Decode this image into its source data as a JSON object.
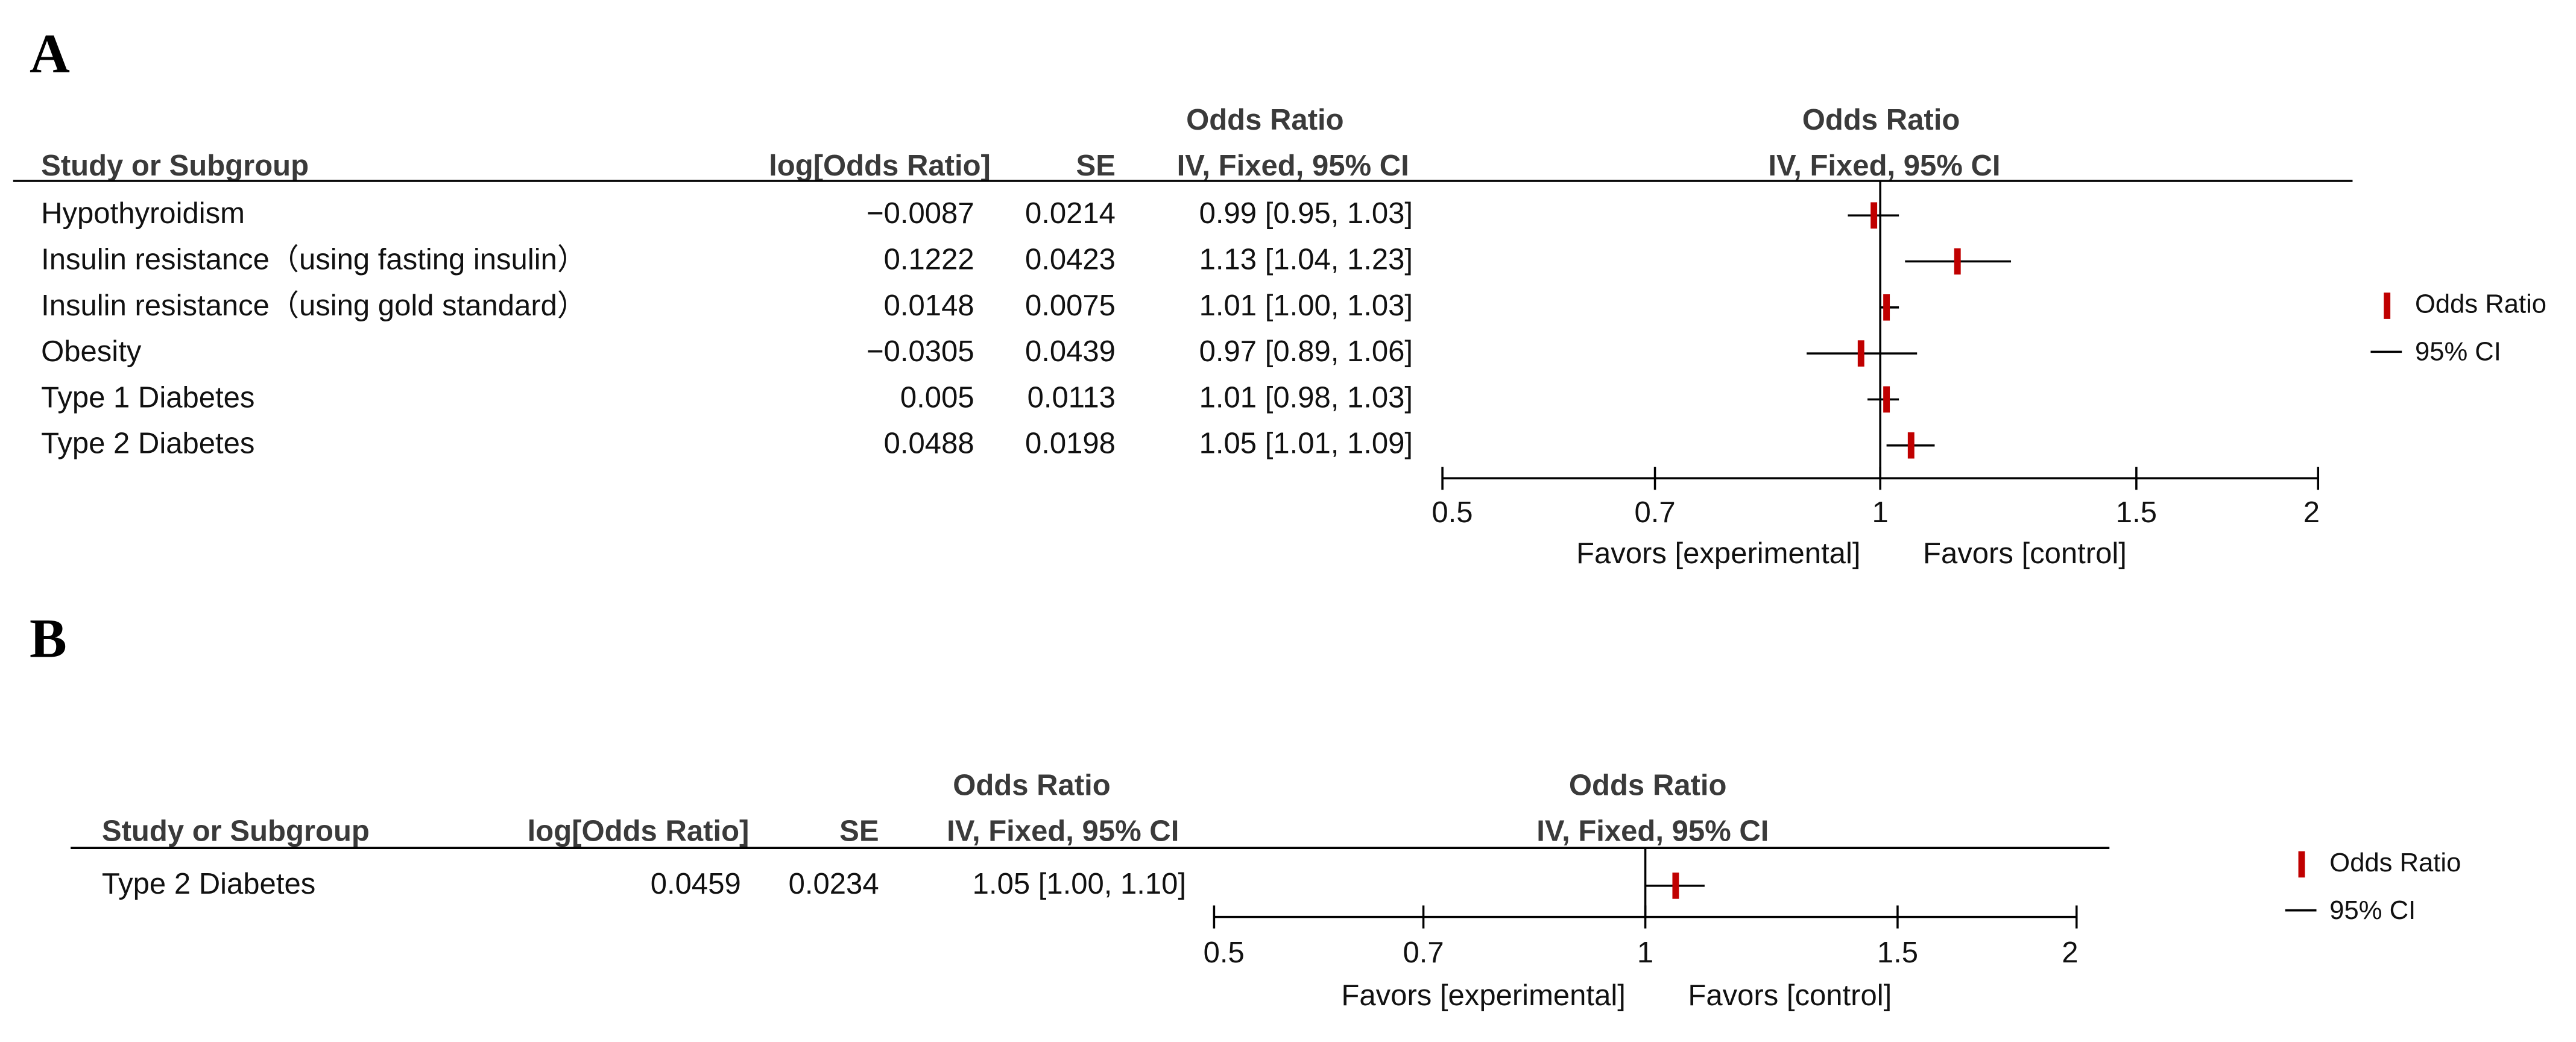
{
  "chart_data": [
    {
      "type": "forest",
      "panel": "A",
      "columns": {
        "study": "Study or Subgroup",
        "log_or": "log[Odds Ratio]",
        "se": "SE",
        "ci_title": "Odds Ratio",
        "ci_subtitle": "IV, Fixed, 95% CI"
      },
      "plot_title": "Odds Ratio",
      "plot_subtitle": "IV, Fixed, 95% CI",
      "categories": [
        "Hypothyroidism",
        "Insulin resistance（using fasting insulin）",
        "Insulin resistance（using gold standard）",
        "Obesity",
        "Type 1 Diabetes",
        "Type 2 Diabetes"
      ],
      "log_or": [
        -0.0087,
        0.1222,
        0.0148,
        -0.0305,
        0.005,
        0.0488
      ],
      "se": [
        0.0214,
        0.0423,
        0.0075,
        0.0439,
        0.0113,
        0.0198
      ],
      "values": [
        0.99,
        1.13,
        1.01,
        0.97,
        1.01,
        1.05
      ],
      "ci_low": [
        0.95,
        1.04,
        1.0,
        0.89,
        0.98,
        1.01
      ],
      "ci_high": [
        1.03,
        1.23,
        1.03,
        1.06,
        1.03,
        1.09
      ],
      "value_labels": [
        "0.99 [0.95, 1.03]",
        "1.13 [1.04, 1.23]",
        "1.01 [1.00, 1.03]",
        "0.97 [0.89, 1.06]",
        "1.01 [0.98, 1.03]",
        "1.05 [1.01, 1.09]"
      ],
      "xlim": [
        0.5,
        2
      ],
      "xticks": [
        0.5,
        0.7,
        1,
        1.5,
        2
      ],
      "log_scale": true,
      "reference": 1,
      "favors_left": "Favors [experimental]",
      "favors_right": "Favors [control]",
      "legend": {
        "point": "Odds Ratio",
        "interval": "95% CI"
      },
      "point_color": "#c00000",
      "interval_color": "#000000"
    },
    {
      "type": "forest",
      "panel": "B",
      "columns": {
        "study": "Study or Subgroup",
        "log_or": "log[Odds Ratio]",
        "se": "SE",
        "ci_title": "Odds Ratio",
        "ci_subtitle": "IV, Fixed, 95% CI"
      },
      "plot_title": "Odds Ratio",
      "plot_subtitle": "IV, Fixed, 95% CI",
      "categories": [
        "Type 2 Diabetes"
      ],
      "log_or": [
        0.0459
      ],
      "se": [
        0.0234
      ],
      "values": [
        1.05
      ],
      "ci_low": [
        1.0
      ],
      "ci_high": [
        1.1
      ],
      "value_labels": [
        "1.05 [1.00, 1.10]"
      ],
      "xlim": [
        0.5,
        2
      ],
      "xticks": [
        0.5,
        0.7,
        1,
        1.5,
        2
      ],
      "log_scale": true,
      "reference": 1,
      "favors_left": "Favors [experimental]",
      "favors_right": "Favors [control]",
      "legend": {
        "point": "Odds Ratio",
        "interval": "95% CI"
      },
      "point_color": "#c00000",
      "interval_color": "#000000"
    }
  ]
}
